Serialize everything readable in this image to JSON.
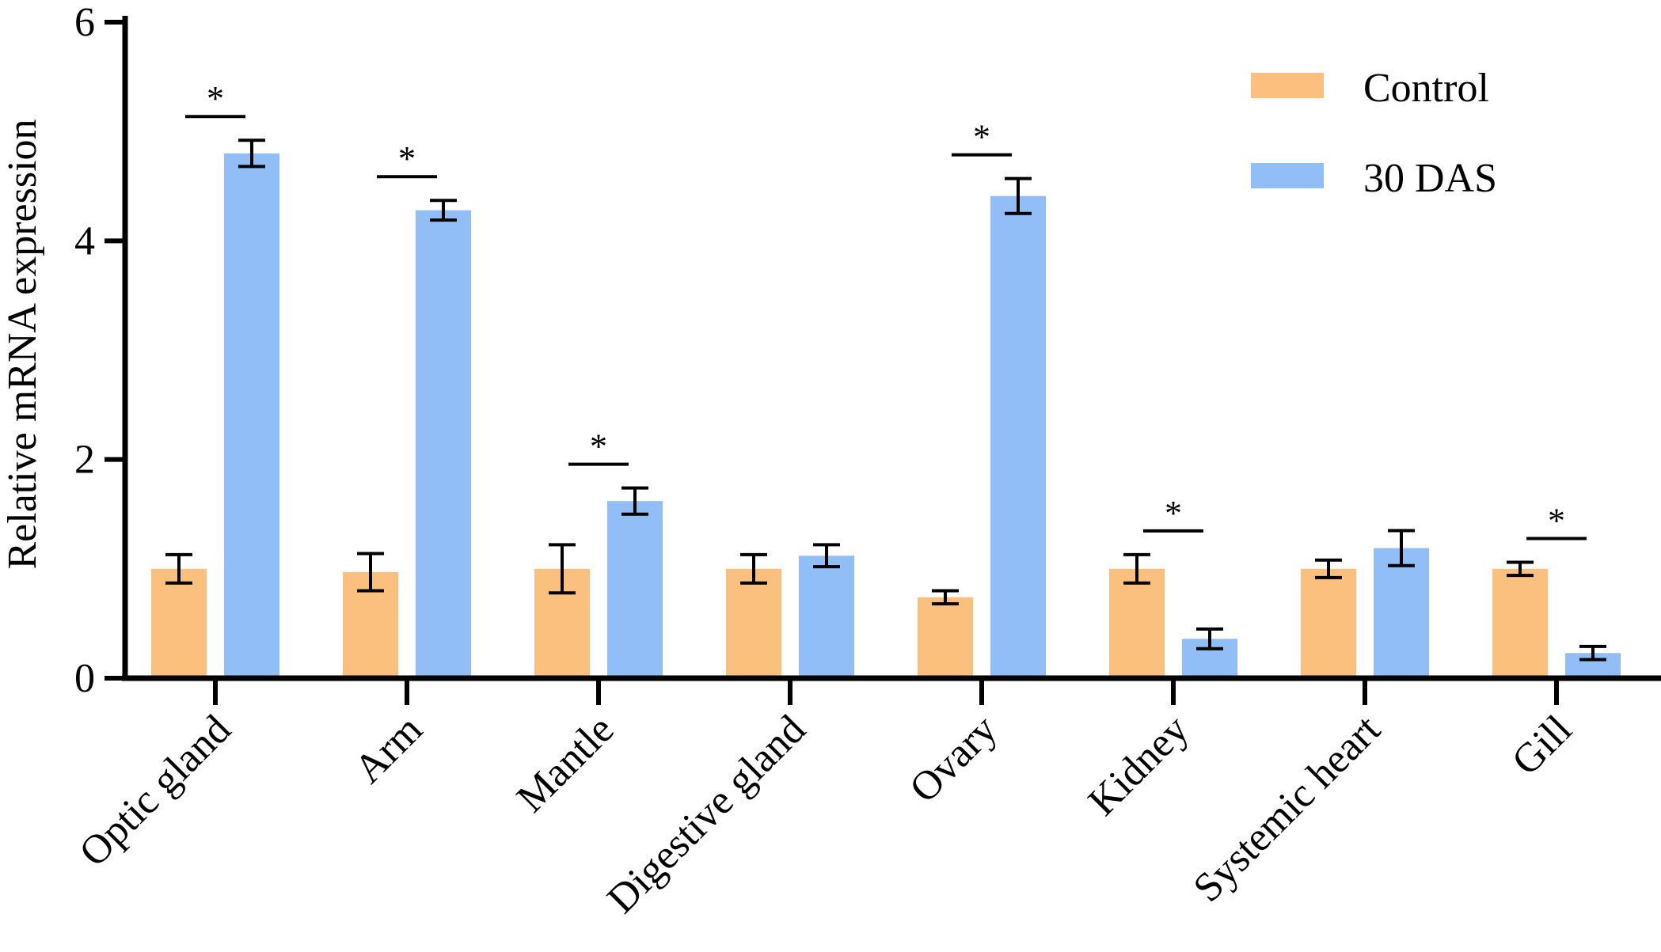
{
  "chart_data": {
    "type": "bar",
    "title": "",
    "xlabel": "",
    "ylabel": "Relative mRNA expression",
    "ylim": [
      0,
      6
    ],
    "yticks": [
      "0",
      "2",
      "4",
      "6"
    ],
    "categories": [
      "Optic gland",
      "Arm",
      "Mantle",
      "Digestive gland",
      "Ovary",
      "Kidney",
      "Systemic heart",
      "Gill"
    ],
    "series": [
      {
        "name": "Control",
        "color": "#FCC07E",
        "values": [
          1.0,
          0.97,
          1.0,
          1.0,
          0.74,
          1.0,
          1.0,
          1.0
        ],
        "errors": [
          0.13,
          0.17,
          0.22,
          0.13,
          0.06,
          0.13,
          0.08,
          0.06
        ]
      },
      {
        "name": "30 DAS",
        "color": "#91BEF7",
        "values": [
          4.8,
          4.28,
          1.62,
          1.12,
          4.41,
          0.36,
          1.19,
          0.23
        ]
      }
    ],
    "errors_30das": [
      0.12,
      0.09,
      0.12,
      0.1,
      0.16,
      0.09,
      0.16,
      0.06
    ],
    "significance": [
      "*",
      "*",
      "*",
      "",
      "*",
      "*",
      "",
      "*"
    ],
    "legend": "top-right"
  }
}
